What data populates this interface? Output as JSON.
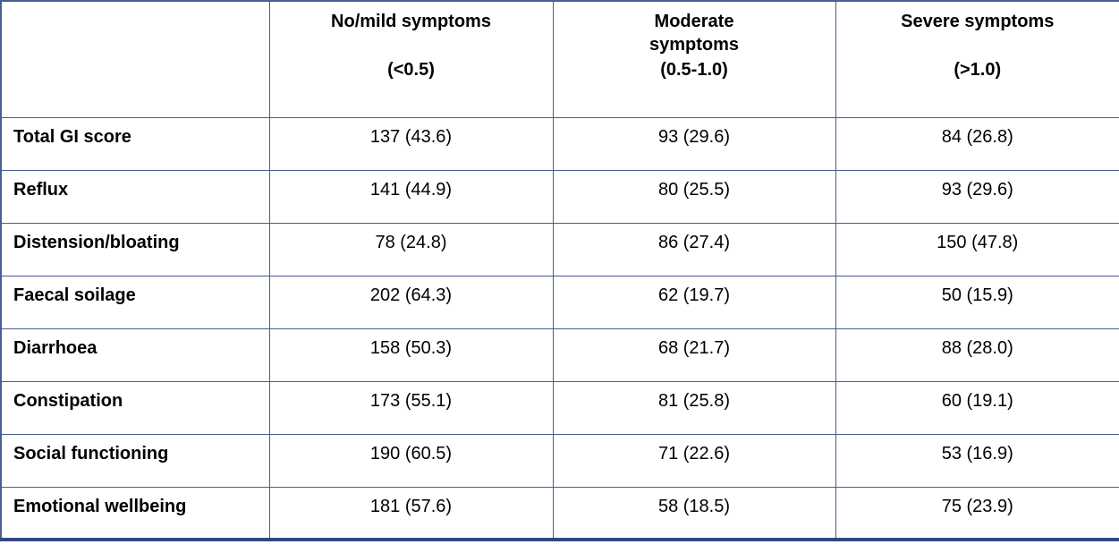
{
  "table": {
    "columns": [
      {
        "title": "No/mild symptoms",
        "subtitle": "(<0.5)"
      },
      {
        "title": "Moderate\nsymptoms",
        "subtitle": "(0.5-1.0)"
      },
      {
        "title": "Severe symptoms",
        "subtitle": "(>1.0)"
      }
    ],
    "rows": [
      {
        "label": "Total GI score",
        "values": [
          "137 (43.6)",
          "93 (29.6)",
          "84 (26.8)"
        ]
      },
      {
        "label": "Reflux",
        "values": [
          "141 (44.9)",
          "80 (25.5)",
          "93 (29.6)"
        ]
      },
      {
        "label": "Distension/bloating",
        "values": [
          "78 (24.8)",
          "86 (27.4)",
          "150 (47.8)"
        ]
      },
      {
        "label": "Faecal soilage",
        "values": [
          "202 (64.3)",
          "62 (19.7)",
          "50 (15.9)"
        ]
      },
      {
        "label": "Diarrhoea",
        "values": [
          "158 (50.3)",
          "68 (21.7)",
          "88 (28.0)"
        ]
      },
      {
        "label": "Constipation",
        "values": [
          "173 (55.1)",
          "81 (25.8)",
          "60 (19.1)"
        ]
      },
      {
        "label": "Social functioning",
        "values": [
          "190 (60.5)",
          "71 (22.6)",
          "53 (16.9)"
        ]
      },
      {
        "label": "Emotional wellbeing",
        "values": [
          "181 (57.6)",
          "58 (18.5)",
          "75 (23.9)"
        ]
      }
    ],
    "border_color": "#4a5d94"
  },
  "chart_data": {
    "type": "table",
    "title": "",
    "categories": [
      "Total GI score",
      "Reflux",
      "Distension/bloating",
      "Faecal soilage",
      "Diarrhoea",
      "Constipation",
      "Social functioning",
      "Emotional wellbeing"
    ],
    "series": [
      {
        "name": "No/mild symptoms (<0.5) n (%)",
        "values": [
          137,
          141,
          78,
          202,
          158,
          173,
          190,
          181
        ],
        "percents": [
          43.6,
          44.9,
          24.8,
          64.3,
          50.3,
          55.1,
          60.5,
          57.6
        ]
      },
      {
        "name": "Moderate symptoms (0.5-1.0) n (%)",
        "values": [
          93,
          80,
          86,
          62,
          68,
          81,
          71,
          58
        ],
        "percents": [
          29.6,
          25.5,
          27.4,
          19.7,
          21.7,
          25.8,
          22.6,
          18.5
        ]
      },
      {
        "name": "Severe symptoms (>1.0) n (%)",
        "values": [
          84,
          93,
          150,
          50,
          88,
          60,
          53,
          75
        ],
        "percents": [
          26.8,
          29.6,
          47.8,
          15.9,
          28.0,
          19.1,
          16.9,
          23.9
        ]
      }
    ]
  }
}
